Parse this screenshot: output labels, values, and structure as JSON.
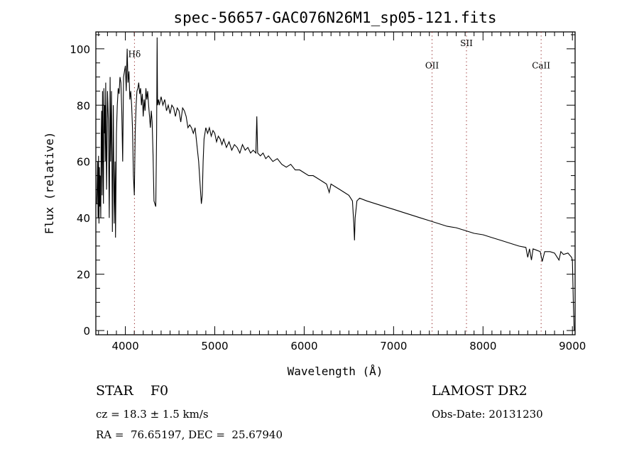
{
  "chart_data": {
    "type": "line",
    "title": "spec-56657-GAC076N26M1_sp05-121.fits",
    "xlabel": "Wavelength (Å)",
    "ylabel": "Flux (relative)",
    "xlim": [
      3670,
      9030
    ],
    "ylim": [
      -1.5,
      106
    ],
    "xticks": [
      4000,
      5000,
      6000,
      7000,
      8000,
      9000
    ],
    "yticks": [
      0,
      20,
      40,
      60,
      80,
      100
    ],
    "grid": false,
    "line_color": "#000000",
    "marker_color": "#8b1a1a",
    "lines": [
      {
        "label": "Hδ",
        "wavelength": 4102,
        "label_flux": 97
      },
      {
        "label": "OII",
        "wavelength": 7430,
        "label_flux": 93
      },
      {
        "label": "SII",
        "wavelength": 7815,
        "label_flux": 101
      },
      {
        "label": "CaII",
        "wavelength": 8650,
        "label_flux": 93
      }
    ],
    "series": [
      {
        "name": "spectrum",
        "points": [
          [
            3680,
            45
          ],
          [
            3690,
            60
          ],
          [
            3695,
            40
          ],
          [
            3700,
            62
          ],
          [
            3705,
            38
          ],
          [
            3710,
            58
          ],
          [
            3715,
            44
          ],
          [
            3720,
            55
          ],
          [
            3725,
            40
          ],
          [
            3730,
            70
          ],
          [
            3735,
            78
          ],
          [
            3740,
            48
          ],
          [
            3745,
            85
          ],
          [
            3750,
            62
          ],
          [
            3755,
            45
          ],
          [
            3760,
            86
          ],
          [
            3765,
            70
          ],
          [
            3770,
            80
          ],
          [
            3775,
            60
          ],
          [
            3780,
            88
          ],
          [
            3785,
            65
          ],
          [
            3790,
            50
          ],
          [
            3800,
            85
          ],
          [
            3810,
            75
          ],
          [
            3820,
            40
          ],
          [
            3830,
            90
          ],
          [
            3835,
            60
          ],
          [
            3845,
            85
          ],
          [
            3855,
            35
          ],
          [
            3865,
            80
          ],
          [
            3875,
            38
          ],
          [
            3885,
            60
          ],
          [
            3890,
            33
          ],
          [
            3900,
            70
          ],
          [
            3910,
            80
          ],
          [
            3920,
            86
          ],
          [
            3930,
            84
          ],
          [
            3940,
            90
          ],
          [
            3950,
            88
          ],
          [
            3960,
            78
          ],
          [
            3970,
            60
          ],
          [
            3980,
            90
          ],
          [
            3990,
            92
          ],
          [
            4000,
            94
          ],
          [
            4010,
            85
          ],
          [
            4020,
            100
          ],
          [
            4030,
            88
          ],
          [
            4040,
            92
          ],
          [
            4050,
            82
          ],
          [
            4060,
            85
          ],
          [
            4070,
            80
          ],
          [
            4080,
            72
          ],
          [
            4090,
            55
          ],
          [
            4100,
            48
          ],
          [
            4110,
            70
          ],
          [
            4120,
            80
          ],
          [
            4130,
            85
          ],
          [
            4140,
            86
          ],
          [
            4150,
            88
          ],
          [
            4160,
            84
          ],
          [
            4170,
            86
          ],
          [
            4180,
            80
          ],
          [
            4190,
            84
          ],
          [
            4200,
            76
          ],
          [
            4210,
            82
          ],
          [
            4220,
            78
          ],
          [
            4230,
            86
          ],
          [
            4240,
            82
          ],
          [
            4250,
            85
          ],
          [
            4260,
            80
          ],
          [
            4270,
            76
          ],
          [
            4280,
            72
          ],
          [
            4290,
            78
          ],
          [
            4300,
            74
          ],
          [
            4310,
            62
          ],
          [
            4320,
            46
          ],
          [
            4330,
            45
          ],
          [
            4340,
            44
          ],
          [
            4350,
            70
          ],
          [
            4355,
            104
          ],
          [
            4360,
            80
          ],
          [
            4370,
            82
          ],
          [
            4380,
            80
          ],
          [
            4400,
            83
          ],
          [
            4420,
            80
          ],
          [
            4440,
            82
          ],
          [
            4460,
            78
          ],
          [
            4480,
            80
          ],
          [
            4500,
            77
          ],
          [
            4520,
            80
          ],
          [
            4540,
            79
          ],
          [
            4560,
            76
          ],
          [
            4580,
            79
          ],
          [
            4600,
            78
          ],
          [
            4620,
            74
          ],
          [
            4640,
            79
          ],
          [
            4660,
            78
          ],
          [
            4680,
            76
          ],
          [
            4700,
            72
          ],
          [
            4720,
            73
          ],
          [
            4740,
            72
          ],
          [
            4760,
            70
          ],
          [
            4780,
            72
          ],
          [
            4800,
            66
          ],
          [
            4820,
            60
          ],
          [
            4840,
            50
          ],
          [
            4850,
            45
          ],
          [
            4860,
            48
          ],
          [
            4870,
            60
          ],
          [
            4880,
            68
          ],
          [
            4900,
            72
          ],
          [
            4920,
            70
          ],
          [
            4940,
            72
          ],
          [
            4960,
            69
          ],
          [
            4980,
            71
          ],
          [
            5000,
            70
          ],
          [
            5020,
            67
          ],
          [
            5040,
            69
          ],
          [
            5060,
            68
          ],
          [
            5080,
            66
          ],
          [
            5100,
            68
          ],
          [
            5130,
            65
          ],
          [
            5160,
            67
          ],
          [
            5190,
            64
          ],
          [
            5220,
            66
          ],
          [
            5250,
            65
          ],
          [
            5280,
            63
          ],
          [
            5310,
            66
          ],
          [
            5340,
            64
          ],
          [
            5370,
            65
          ],
          [
            5400,
            63
          ],
          [
            5430,
            64
          ],
          [
            5460,
            63
          ],
          [
            5470,
            76
          ],
          [
            5480,
            63
          ],
          [
            5510,
            62
          ],
          [
            5540,
            63
          ],
          [
            5570,
            61
          ],
          [
            5600,
            62
          ],
          [
            5650,
            60
          ],
          [
            5700,
            61
          ],
          [
            5750,
            59
          ],
          [
            5800,
            58
          ],
          [
            5850,
            59
          ],
          [
            5900,
            57
          ],
          [
            5950,
            57
          ],
          [
            6000,
            56
          ],
          [
            6050,
            55
          ],
          [
            6100,
            55
          ],
          [
            6150,
            54
          ],
          [
            6200,
            53
          ],
          [
            6250,
            52
          ],
          [
            6280,
            49
          ],
          [
            6300,
            52
          ],
          [
            6350,
            51
          ],
          [
            6400,
            50
          ],
          [
            6450,
            49
          ],
          [
            6500,
            48
          ],
          [
            6540,
            46
          ],
          [
            6555,
            38
          ],
          [
            6563,
            32
          ],
          [
            6570,
            40
          ],
          [
            6590,
            46
          ],
          [
            6620,
            47
          ],
          [
            6700,
            46
          ],
          [
            6800,
            45
          ],
          [
            6900,
            44
          ],
          [
            7000,
            43
          ],
          [
            7100,
            42
          ],
          [
            7200,
            41
          ],
          [
            7300,
            40
          ],
          [
            7400,
            39
          ],
          [
            7500,
            38
          ],
          [
            7600,
            37
          ],
          [
            7700,
            36.5
          ],
          [
            7800,
            35.5
          ],
          [
            7900,
            34.5
          ],
          [
            8000,
            34
          ],
          [
            8100,
            33
          ],
          [
            8200,
            32
          ],
          [
            8300,
            31
          ],
          [
            8400,
            30
          ],
          [
            8480,
            29.5
          ],
          [
            8500,
            26
          ],
          [
            8520,
            29
          ],
          [
            8542,
            25
          ],
          [
            8560,
            29
          ],
          [
            8600,
            28.5
          ],
          [
            8640,
            28
          ],
          [
            8662,
            24.5
          ],
          [
            8690,
            28
          ],
          [
            8750,
            28
          ],
          [
            8800,
            27.5
          ],
          [
            8850,
            25
          ],
          [
            8870,
            28
          ],
          [
            8900,
            27
          ],
          [
            8950,
            27.5
          ],
          [
            8990,
            26
          ],
          [
            9000,
            25
          ],
          [
            9010,
            10
          ],
          [
            9020,
            0
          ]
        ]
      }
    ]
  },
  "info": {
    "object_class": "STAR    F0",
    "survey": "LAMOST DR2",
    "redshift": "cz = 18.3 ± 1.5 km/s",
    "obs_date": "Obs-Date: 20131230",
    "coords": "RA =  76.65197, DEC =  25.67940"
  }
}
